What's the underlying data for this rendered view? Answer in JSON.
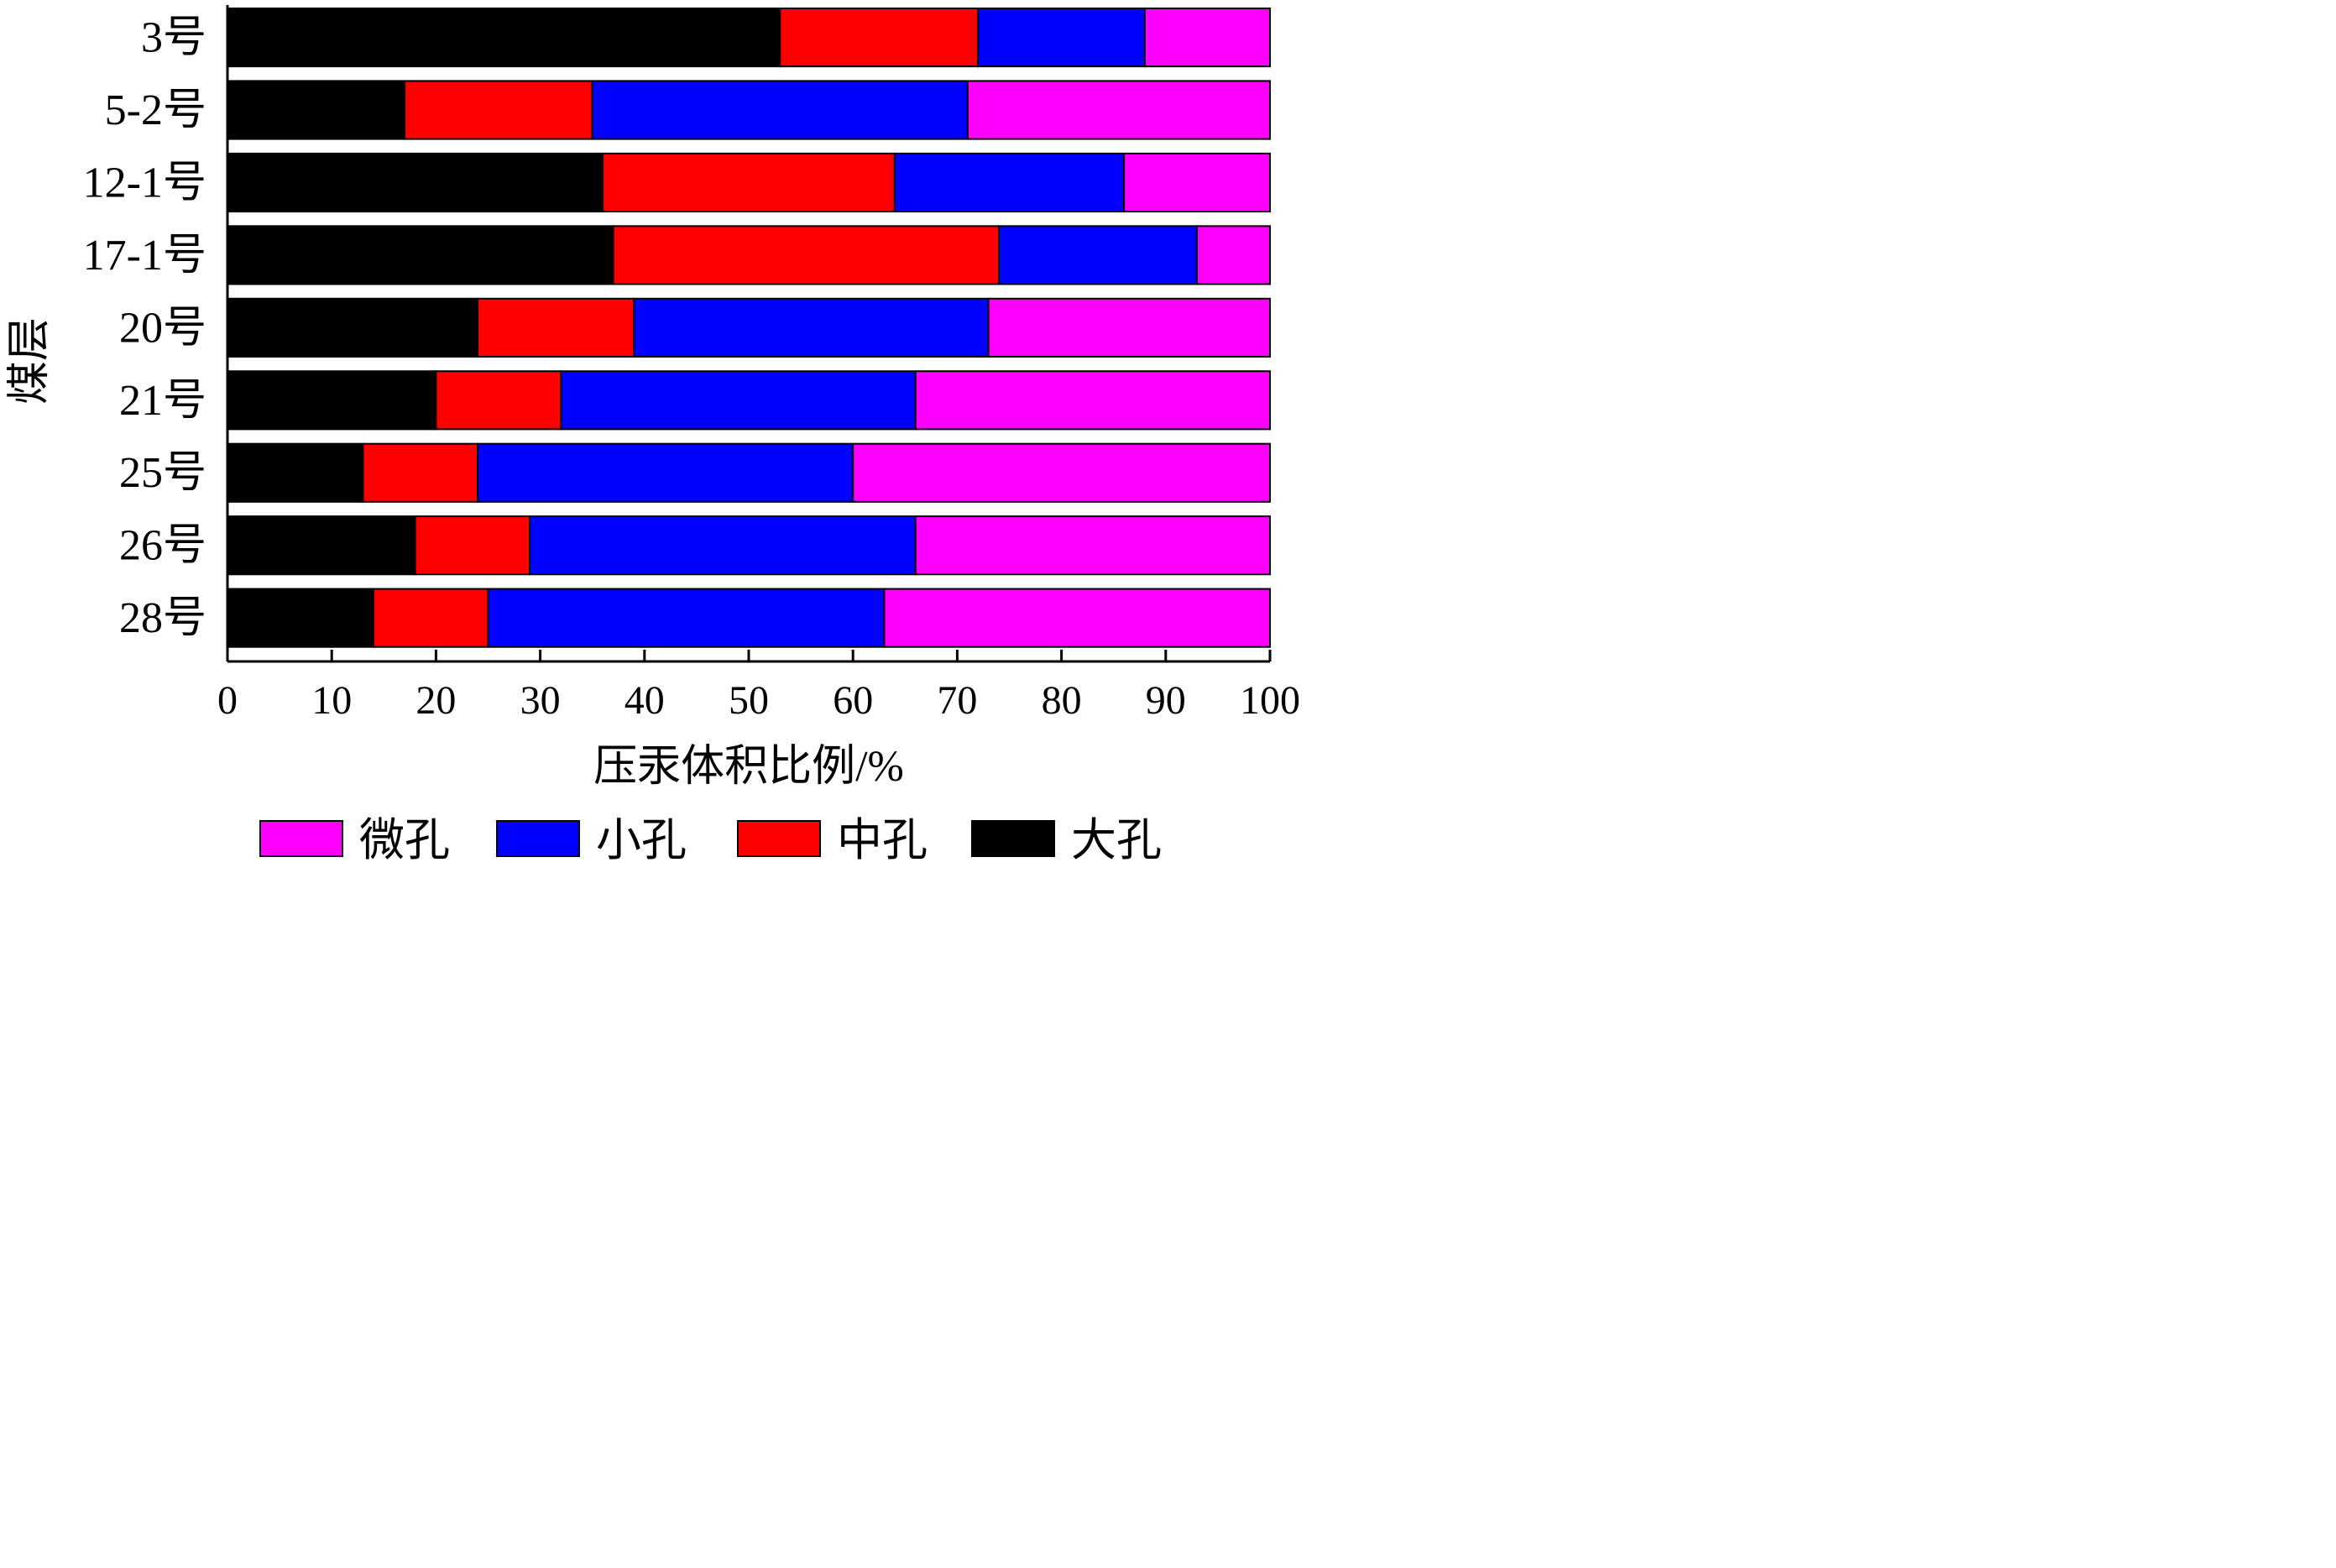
{
  "chart_data": {
    "type": "bar",
    "orientation": "horizontal",
    "stacked": true,
    "categories": [
      "3号",
      "5-2号",
      "12-1号",
      "17-1号",
      "20号",
      "21号",
      "25号",
      "26号",
      "28号"
    ],
    "series": [
      {
        "name": "大孔",
        "color": "#000000",
        "values": [
          53,
          17,
          36,
          37,
          24,
          20,
          13,
          18,
          14
        ]
      },
      {
        "name": "中孔",
        "color": "#ff0000",
        "values": [
          19,
          18,
          28,
          37,
          15,
          12,
          11,
          11,
          11
        ]
      },
      {
        "name": "小孔",
        "color": "#0000ff",
        "values": [
          16,
          36,
          22,
          19,
          34,
          34,
          36,
          37,
          38
        ]
      },
      {
        "name": "微孔",
        "color": "#ff00ff",
        "values": [
          12,
          29,
          14,
          7,
          27,
          34,
          40,
          34,
          37
        ]
      }
    ],
    "xlabel": "压汞体积比例/%",
    "ylabel": "煤层",
    "xlim": [
      0,
      100
    ],
    "xticks": [
      0,
      10,
      20,
      30,
      40,
      50,
      60,
      70,
      80,
      90,
      100
    ],
    "legend": {
      "position": "bottom",
      "order": [
        "微孔",
        "小孔",
        "中孔",
        "大孔"
      ]
    },
    "grid": false
  }
}
